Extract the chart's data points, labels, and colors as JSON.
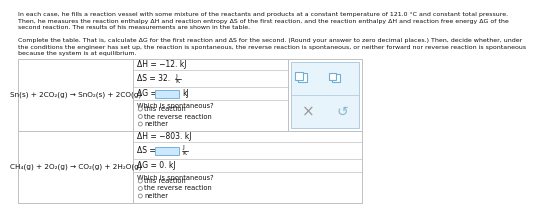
{
  "para1": "In each case, he fills a reaction vessel with some mixture of the reactants and products at a constant temperature of 121.0 °C and constant total pressure.",
  "para2": "Then, he measures the reaction enthalpy ΔH and reaction entropy ΔS of the first reaction, and the reaction enthalpy ΔH and reaction free energy ΔG of the",
  "para3": "second reaction. The results of his measurements are shown in the table.",
  "para4": "Complete the table. That is, calculate ΔG for the first reaction and ΔS for the second. (Round your answer to zero decimal places.) Then, decide whether, under",
  "para5": "the conditions the engineer has set up, the reaction is spontaneous, the reverse reaction is spontaneous, or neither forward nor reverse reaction is spontaneous",
  "para6": "because the system is at equilibrium.",
  "reaction1_formula": "Sn(s) + 2CO₂(g) → SnO₂(s) + 2CO(g)",
  "reaction2_formula": "CH₄(g) + 2O₂(g) → CO₂(g) + 2H₂O(g)",
  "r1_dH": "ΔH = −12. kJ",
  "r1_dS_prefix": "ΔS = 32.",
  "r1_dG_prefix": "ΔG =",
  "r1_dG_unit": "kJ",
  "r2_dH": "ΔH = −803. kJ",
  "r2_dS_prefix": "ΔS =",
  "r2_dG": "ΔG = 0. kJ",
  "spontaneity_label": "Which is spontaneous?",
  "spontaneity_options": [
    "this reaction",
    "the reverse reaction",
    "neither"
  ],
  "bg_color": "#ffffff",
  "border_color": "#c0c0c0",
  "input_box_color": "#cce8ff",
  "input_box_border": "#7ab0d8",
  "icon_bg_color": "#e8f4fb",
  "icon_border_color": "#b0cce0",
  "icon_sq_color": "#6ab0d8",
  "radio_color": "#888888",
  "text_color": "#111111",
  "light_text": "#555555"
}
